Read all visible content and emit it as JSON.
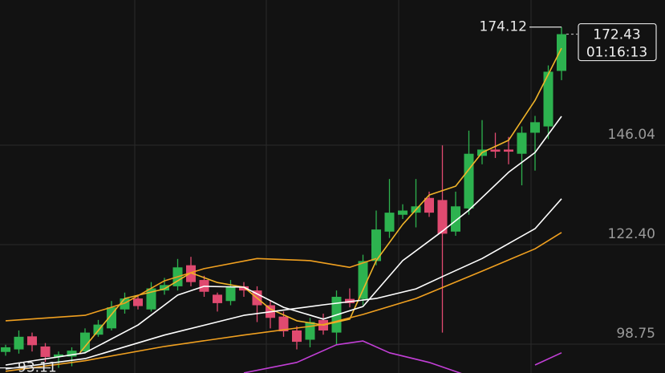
{
  "chart_data": {
    "type": "candlestick",
    "up_color": "#2db24f",
    "down_color": "#e04a70",
    "ylim": [
      91.89,
      180.55
    ],
    "yticks": [
      98.75,
      {
        "value": 122.4,
        "label": "122.40"
      },
      146.04
    ],
    "grid": true,
    "open": [
      96.9,
      97.5,
      100.6,
      98.2,
      95.7,
      95.8,
      97,
      101,
      102.5,
      107,
      109.6,
      107,
      111.5,
      112.5,
      117.5,
      114,
      110.5,
      109,
      112.5,
      111.5,
      108,
      105.3,
      102,
      99.8,
      104.5,
      101.5,
      109.5,
      109.5,
      118.5,
      125.5,
      129.5,
      130,
      133.5,
      133,
      125.5,
      131,
      143.5,
      145,
      145,
      144,
      149,
      150.5,
      163.7
    ],
    "high": [
      98.6,
      102,
      101.5,
      99,
      97,
      98,
      102.5,
      104.5,
      109,
      111,
      110.5,
      113.5,
      114.5,
      119,
      119.5,
      115,
      111,
      114,
      113.5,
      112.5,
      109,
      106.5,
      103,
      105,
      106,
      111.5,
      112,
      120,
      130.5,
      138,
      132,
      138,
      135,
      146,
      135,
      149.5,
      152,
      149,
      148,
      150.5,
      153,
      165,
      174.12
    ],
    "low": [
      96,
      96.5,
      97,
      94.5,
      93.11,
      93.5,
      96.5,
      100.5,
      102,
      106,
      107,
      106.5,
      110.5,
      111.5,
      112.5,
      110,
      106.5,
      108,
      110,
      104,
      102.5,
      100.5,
      97.5,
      98,
      101,
      98.5,
      107.5,
      108,
      117.5,
      124,
      128.5,
      126.5,
      129,
      101.5,
      124.5,
      129.5,
      141.5,
      143,
      141.5,
      136.5,
      140,
      147.5,
      161.5
    ],
    "close": [
      98,
      100.5,
      98.5,
      95.7,
      96.3,
      97.2,
      101.5,
      103.4,
      107.5,
      109.6,
      107.8,
      112,
      112.8,
      117,
      113.5,
      111.2,
      108.5,
      112.5,
      111.5,
      108,
      105,
      101.8,
      99.3,
      104,
      102,
      110,
      108.5,
      118.5,
      126,
      130,
      130.5,
      131.5,
      130,
      125,
      131.5,
      144,
      145,
      144.5,
      144.5,
      149,
      151.5,
      163.5,
      172.43
    ],
    "lines": [
      {
        "color": "#f0b429",
        "x": [
          5.6,
          9,
          12,
          14,
          16,
          18,
          20,
          22,
          24,
          26,
          28,
          30,
          32,
          34,
          36,
          38,
          40,
          42
        ],
        "values": [
          96.66,
          109.6,
          111.9,
          115.7,
          113.4,
          112.3,
          107.1,
          104.3,
          103.3,
          104.7,
          118.6,
          127.2,
          134.2,
          136.3,
          144.3,
          147.2,
          156.7,
          169.1
        ]
      },
      {
        "color": "#ffffff",
        "x": [
          0,
          6,
          10,
          13,
          15,
          18,
          21,
          24,
          27,
          30,
          33,
          35,
          38,
          40,
          42
        ],
        "values": [
          93.8,
          96.7,
          103.3,
          110.4,
          112.5,
          112.3,
          107.5,
          104.7,
          107.7,
          118.6,
          125.6,
          130.6,
          139.6,
          144.3,
          152.9
        ]
      },
      {
        "color": "#ffffff",
        "x": [
          0,
          6,
          12,
          18,
          24,
          28,
          31,
          33,
          36,
          40,
          42
        ],
        "values": [
          92.85,
          95.3,
          100.9,
          105.6,
          108.1,
          109.6,
          111.9,
          114.8,
          119.1,
          126.2,
          133.3
        ]
      },
      {
        "color": "#f0a020",
        "x": [
          0,
          6,
          12,
          18,
          24,
          27,
          31,
          36,
          40,
          42
        ],
        "values": [
          92.3,
          94.8,
          98.2,
          100.9,
          103.4,
          105.8,
          109.6,
          116.1,
          121.4,
          125.3
        ]
      },
      {
        "color": "#f0a020",
        "x": [
          0,
          6,
          9,
          12,
          15,
          19,
          23,
          26,
          28
        ],
        "values": [
          104.3,
          105.6,
          108.5,
          113.8,
          116.7,
          119.1,
          118.6,
          117.0,
          119.1
        ]
      },
      {
        "color": "#c23fd6",
        "x": [
          18,
          22,
          25,
          27,
          29,
          32,
          34.5,
          37,
          40,
          42
        ],
        "values": [
          91.9,
          94.4,
          98.6,
          99.5,
          96.7,
          94.4,
          91.7,
          null,
          93.8,
          96.7
        ]
      }
    ],
    "high_marker": 174.12,
    "low_marker": 93.11,
    "last_price": 172.43,
    "countdown": "01:16:13"
  }
}
